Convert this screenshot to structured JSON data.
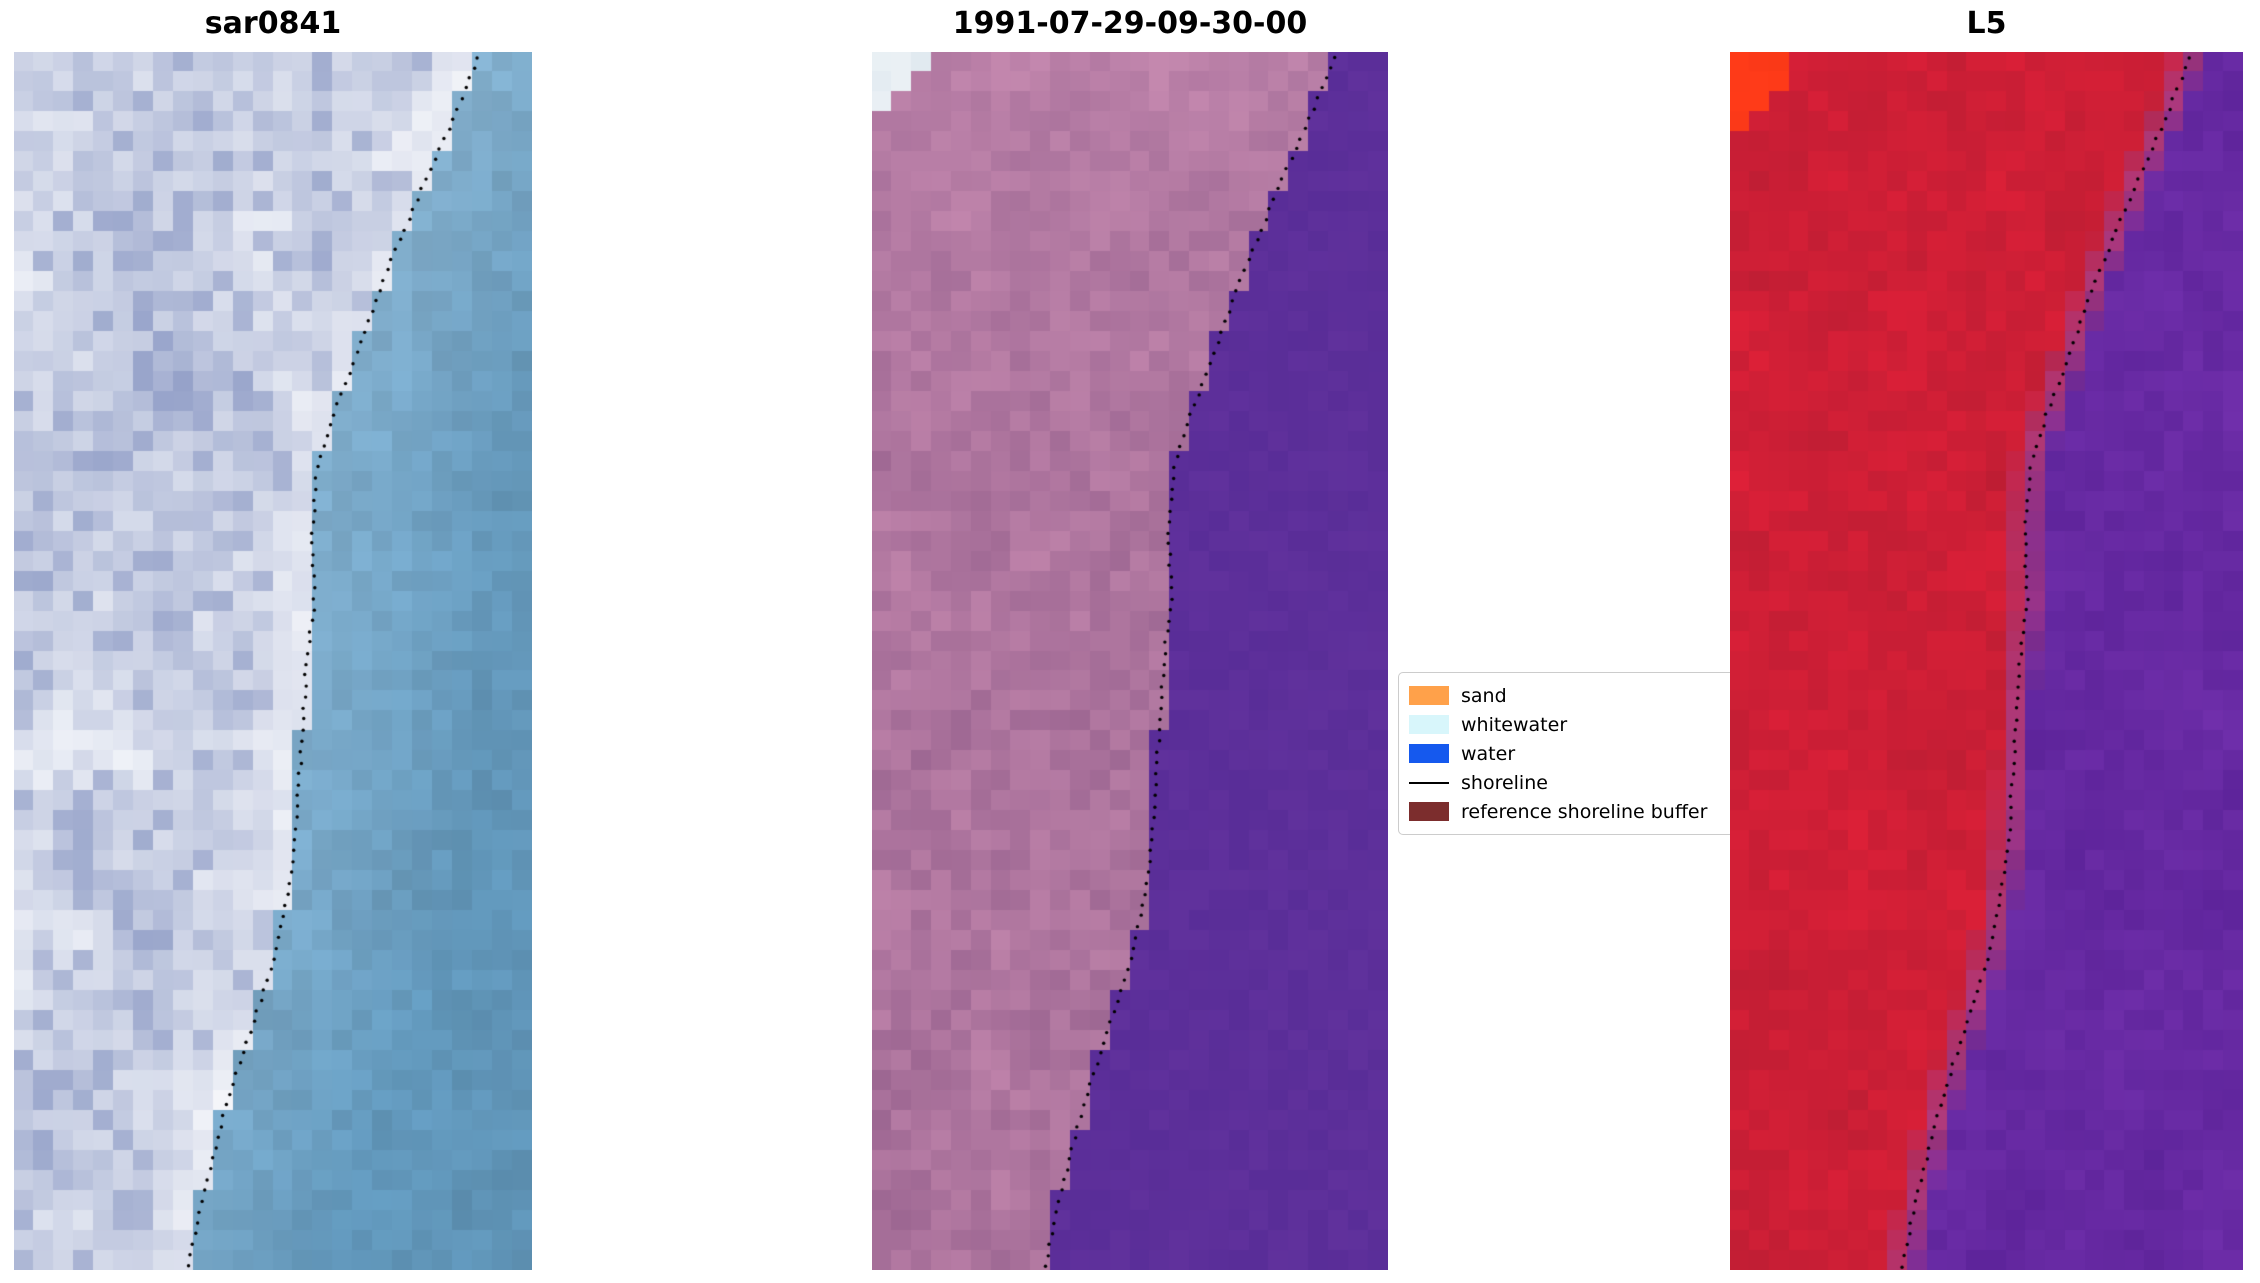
{
  "figure": {
    "background": "#ffffff"
  },
  "chart_data": {
    "type": "heatmap",
    "description": "Three-panel shoreline-detection figure: an RGB/SAR satellite crop, a classified scene dated 1991-07-29-09-30-00, and a Landsat 5 false-colour crop, each overlaid with the detected shoreline drawn as a dotted black line running from the top-right toward the bottom-left of each panel.",
    "grid": {
      "cols": 26,
      "rows": 61
    },
    "panels": [
      {
        "id": "sar",
        "title": "sar0841",
        "kind": "rgb-satellite-image",
        "palette": {
          "water_near": "#8fb9d6",
          "water_far": "#6095b8",
          "land_light": "#f4f6fa",
          "land_dark": "#93a0c8",
          "surf": "#ffffff"
        }
      },
      {
        "id": "classified",
        "title": "1991-07-29-09-30-00",
        "kind": "classified-image",
        "palette": {
          "land_light": "#c689af",
          "land_dark": "#97628e",
          "land_top_pink": "#cf93b8",
          "water": "#64339f",
          "water_dark": "#552b95",
          "corner_pale": "#d9e4ec"
        }
      },
      {
        "id": "l5",
        "title": "L5",
        "kind": "false-colour-image",
        "palette": {
          "land_light": "#e02038",
          "land_dark": "#ac1c31",
          "transition": "#c04d82",
          "water_light": "#7a35b4",
          "water_dark": "#521d90",
          "corner_patch": "#ff3a18"
        }
      }
    ],
    "shoreline": {
      "label": "shoreline",
      "color": "#000000",
      "style": "dotted",
      "points_t_x": [
        [
          0.0,
          0.9
        ],
        [
          0.05,
          0.853
        ],
        [
          0.1,
          0.8
        ],
        [
          0.14,
          0.76
        ],
        [
          0.18,
          0.72
        ],
        [
          0.22,
          0.685
        ],
        [
          0.26,
          0.652
        ],
        [
          0.3,
          0.615
        ],
        [
          0.34,
          0.585
        ],
        [
          0.4,
          0.575
        ],
        [
          0.45,
          0.58
        ],
        [
          0.5,
          0.565
        ],
        [
          0.55,
          0.558
        ],
        [
          0.6,
          0.55
        ],
        [
          0.65,
          0.543
        ],
        [
          0.7,
          0.525
        ],
        [
          0.75,
          0.498
        ],
        [
          0.8,
          0.46
        ],
        [
          0.85,
          0.42
        ],
        [
          0.9,
          0.388
        ],
        [
          0.95,
          0.358
        ],
        [
          1.0,
          0.335
        ]
      ]
    }
  },
  "legend": {
    "items": [
      {
        "label": "sand",
        "swatch": "patch",
        "color": "#ffa14a"
      },
      {
        "label": "whitewater",
        "swatch": "patch",
        "color": "#d8f6fb"
      },
      {
        "label": "water",
        "swatch": "patch",
        "color": "#1559ee"
      },
      {
        "label": "shoreline",
        "swatch": "line",
        "color": "#000000"
      },
      {
        "label": "reference shoreline buffer",
        "swatch": "patch",
        "color": "#7c2d2d"
      }
    ]
  }
}
